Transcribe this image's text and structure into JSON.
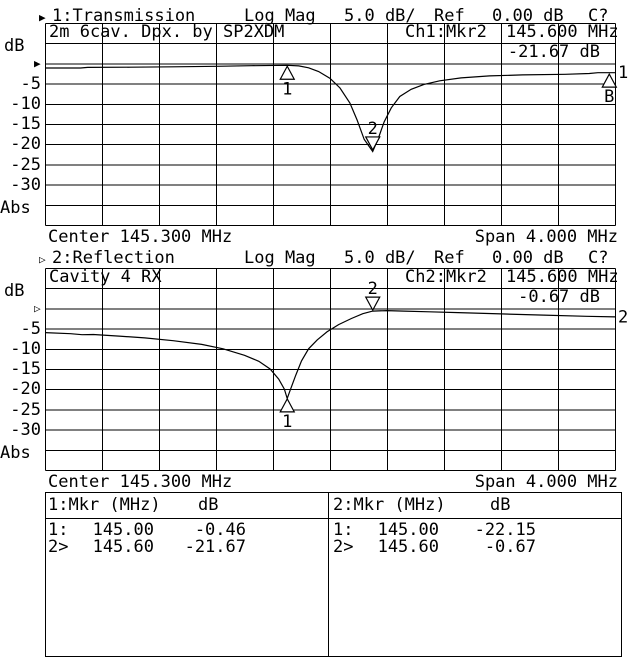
{
  "app": {
    "bg": "#ffffff",
    "fg": "#000000"
  },
  "headers": [
    {
      "arrow": "▶",
      "trace": "1:Transmission",
      "format": "Log Mag",
      "scale": "5.0 dB/",
      "ref": "Ref",
      "ref_value": "0.00 dB",
      "cal": "C?"
    },
    {
      "arrow": "▷",
      "trace": "2:Reflection",
      "format": "Log Mag",
      "scale": "5.0 dB/",
      "ref": "Ref",
      "ref_value": "0.00 dB",
      "cal": "C?"
    }
  ],
  "freq_lines": [
    {
      "center": "Center 145.300 MHz",
      "span": "Span 4.000 MHz"
    },
    {
      "center": "Center 145.300 MHz",
      "span": "Span 4.000 MHz"
    }
  ],
  "chart_data": [
    {
      "id": "svg-transmission",
      "type": "line",
      "title": "2m 6cav. Dpx. by SP2XDM",
      "readout": {
        "ch": "Ch1:Mkr2",
        "freq": "145.600 MHz",
        "value": "-21.67 dB"
      },
      "trace_number": "1",
      "x_unit": "MHz",
      "y_unit": "dB",
      "xrange": [
        143.3,
        147.3
      ],
      "yrange": [
        10,
        -40
      ],
      "scale_per_div": 5.0,
      "ref_level": 0.0,
      "grid": {
        "cols": 10,
        "rows": 10
      },
      "yticks": [
        "dB",
        "-5",
        "-10",
        "-15",
        "-20",
        "-25",
        "-30",
        "Abs"
      ],
      "ref_pointer": "▶",
      "series": [
        {
          "name": "Transmission",
          "points": [
            [
              143.3,
              -1.15
            ],
            [
              143.55,
              -1.15
            ],
            [
              143.6,
              -1.0
            ],
            [
              143.9,
              -0.95
            ],
            [
              144.2,
              -0.85
            ],
            [
              144.5,
              -0.72
            ],
            [
              144.75,
              -0.58
            ],
            [
              145.0,
              -0.46
            ],
            [
              145.08,
              -0.62
            ],
            [
              145.15,
              -1.1
            ],
            [
              145.22,
              -2.0
            ],
            [
              145.3,
              -3.7
            ],
            [
              145.37,
              -6.1
            ],
            [
              145.44,
              -9.8
            ],
            [
              145.49,
              -14.0
            ],
            [
              145.54,
              -18.8
            ],
            [
              145.6,
              -21.8
            ],
            [
              145.64,
              -18.5
            ],
            [
              145.68,
              -14.5
            ],
            [
              145.73,
              -11.0
            ],
            [
              145.79,
              -8.2
            ],
            [
              145.87,
              -6.4
            ],
            [
              145.96,
              -5.2
            ],
            [
              146.07,
              -4.3
            ],
            [
              146.22,
              -3.6
            ],
            [
              146.42,
              -3.1
            ],
            [
              146.65,
              -2.85
            ],
            [
              146.95,
              -2.7
            ],
            [
              147.12,
              -2.5
            ],
            [
              147.18,
              -2.3
            ],
            [
              147.3,
              -2.3
            ]
          ]
        }
      ],
      "markers": [
        {
          "x": 145.0,
          "y": -0.46,
          "label": "1",
          "pos": "below"
        },
        {
          "x": 145.6,
          "y": -21.67,
          "label": "2",
          "pos": "above"
        },
        {
          "x": 147.26,
          "y": -2.4,
          "label": "B",
          "pos": "below"
        }
      ],
      "trace_end": {
        "label": "1",
        "y": -2.3
      }
    },
    {
      "id": "svg-reflection",
      "type": "line",
      "title": "Cavity 4 RX",
      "readout": {
        "ch": "Ch2:Mkr2",
        "freq": "145.600 MHz",
        "value": "-0.67 dB"
      },
      "trace_number": "2",
      "x_unit": "MHz",
      "y_unit": "dB",
      "xrange": [
        143.3,
        147.3
      ],
      "yrange": [
        10,
        -40
      ],
      "scale_per_div": 5.0,
      "ref_level": 0.0,
      "grid": {
        "cols": 10,
        "rows": 10
      },
      "yticks": [
        "dB",
        "-5",
        "-10",
        "-15",
        "-20",
        "-25",
        "-30",
        "Abs"
      ],
      "ref_pointer": "▷",
      "series": [
        {
          "name": "Reflection",
          "points": [
            [
              143.3,
              -6.0
            ],
            [
              143.48,
              -6.25
            ],
            [
              143.56,
              -6.5
            ],
            [
              143.64,
              -6.45
            ],
            [
              143.82,
              -6.85
            ],
            [
              144.0,
              -7.3
            ],
            [
              144.2,
              -8.0
            ],
            [
              144.4,
              -8.9
            ],
            [
              144.55,
              -10.0
            ],
            [
              144.7,
              -11.6
            ],
            [
              144.8,
              -13.1
            ],
            [
              144.88,
              -15.0
            ],
            [
              144.94,
              -17.5
            ],
            [
              144.98,
              -20.0
            ],
            [
              145.0,
              -22.3
            ],
            [
              145.02,
              -20.3
            ],
            [
              145.06,
              -16.5
            ],
            [
              145.1,
              -13.0
            ],
            [
              145.15,
              -10.0
            ],
            [
              145.21,
              -7.8
            ],
            [
              145.28,
              -5.8
            ],
            [
              145.36,
              -4.0
            ],
            [
              145.45,
              -2.5
            ],
            [
              145.53,
              -1.3
            ],
            [
              145.6,
              -0.67
            ],
            [
              145.7,
              -0.55
            ],
            [
              145.82,
              -0.68
            ],
            [
              146.0,
              -0.85
            ],
            [
              146.2,
              -1.05
            ],
            [
              146.5,
              -1.35
            ],
            [
              146.8,
              -1.65
            ],
            [
              147.1,
              -1.95
            ],
            [
              147.3,
              -2.1
            ]
          ]
        }
      ],
      "markers": [
        {
          "x": 145.0,
          "y": -22.15,
          "label": "1",
          "pos": "below"
        },
        {
          "x": 145.6,
          "y": -0.67,
          "label": "2",
          "pos": "above"
        }
      ],
      "trace_end": {
        "label": "2",
        "y": -2.1
      }
    }
  ],
  "marker_table": {
    "panes": [
      {
        "header_mkr": "1:Mkr (MHz)",
        "header_db": "dB",
        "rows": [
          {
            "m": "1:",
            "f": "145.00",
            "v": "-0.46"
          },
          {
            "m": "2>",
            "f": "145.60",
            "v": "-21.67"
          }
        ]
      },
      {
        "header_mkr": "2:Mkr (MHz)",
        "header_db": "dB",
        "rows": [
          {
            "m": "1:",
            "f": "145.00",
            "v": "-22.15"
          },
          {
            "m": "2>",
            "f": "145.60",
            "v": "-0.67"
          }
        ]
      }
    ]
  }
}
